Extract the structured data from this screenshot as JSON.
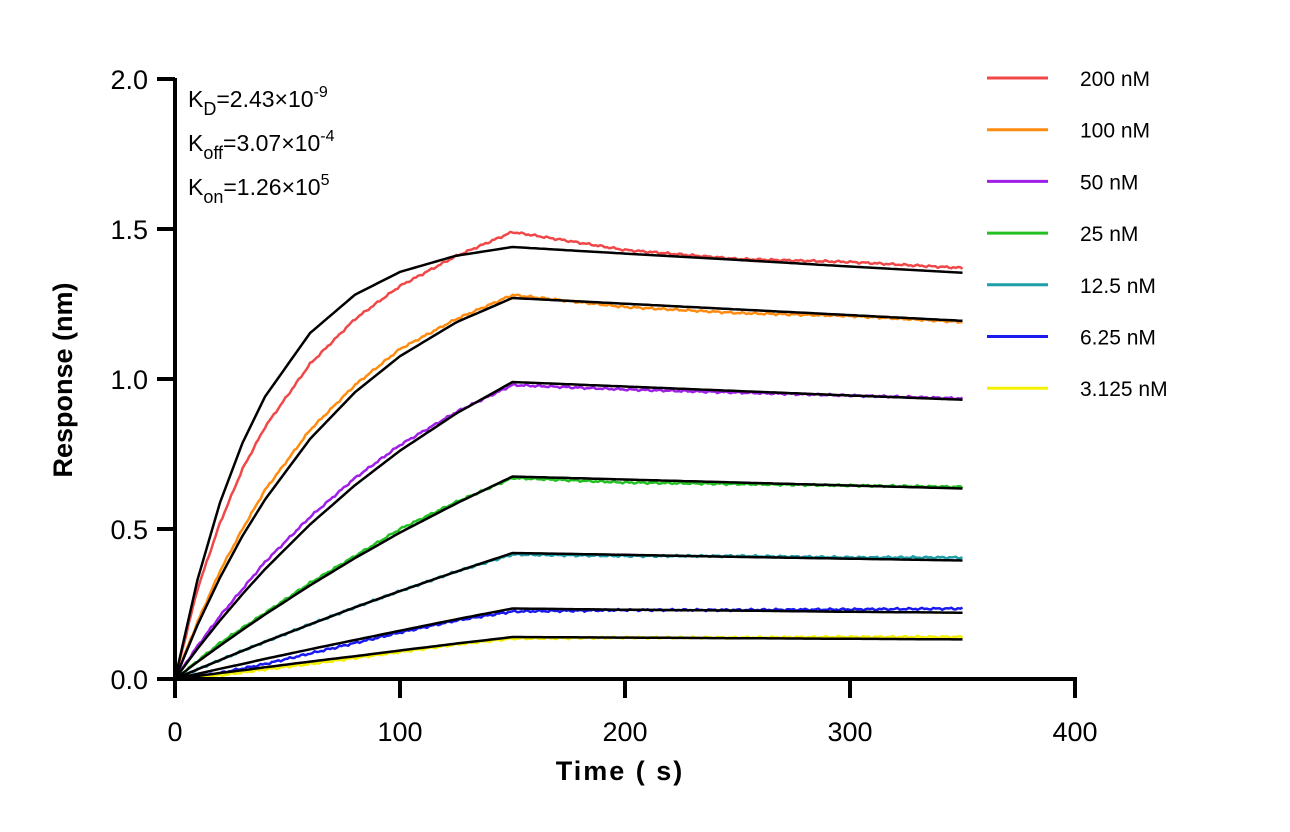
{
  "chart_data": {
    "type": "line",
    "xlabel": "Time ( s)",
    "ylabel": "Response (nm)",
    "xlim": [
      0,
      400
    ],
    "ylim": [
      0,
      2.0
    ],
    "xticks": [
      "0",
      "100",
      "200",
      "300",
      "400"
    ],
    "yticks": [
      "0.0",
      "0.5",
      "1.0",
      "1.5",
      "2.0"
    ],
    "grid": false,
    "legend_position": "top-right",
    "annotations": [
      {
        "sym": "K",
        "sub": "D",
        "val": "=2.43×10",
        "exp": "-9"
      },
      {
        "sym": "K",
        "sub": "off",
        "val": "=3.07×10",
        "exp": "-4"
      },
      {
        "sym": "K",
        "sub": "on",
        "val": "=1.26×10",
        "exp": "5"
      }
    ],
    "x": [
      0,
      10,
      20,
      30,
      40,
      60,
      80,
      100,
      125,
      150,
      200,
      250,
      300,
      350
    ],
    "fit_color": "#000000",
    "series": [
      {
        "name": "200 nM",
        "color": "#F04848",
        "values": [
          0,
          0.3,
          0.52,
          0.7,
          0.84,
          1.05,
          1.2,
          1.31,
          1.41,
          1.49,
          1.43,
          1.4,
          1.39,
          1.37
        ],
        "fit": [
          0,
          0.331,
          0.588,
          0.787,
          0.941,
          1.153,
          1.281,
          1.357,
          1.411,
          1.44,
          1.418,
          1.397,
          1.375,
          1.354
        ]
      },
      {
        "name": "100 nM",
        "color": "#FF8C10",
        "values": [
          0,
          0.19,
          0.36,
          0.5,
          0.63,
          0.83,
          0.98,
          1.1,
          1.2,
          1.28,
          1.24,
          1.22,
          1.21,
          1.19
        ],
        "fit": [
          0,
          0.18,
          0.338,
          0.477,
          0.598,
          0.8,
          0.956,
          1.076,
          1.189,
          1.27,
          1.251,
          1.232,
          1.213,
          1.194
        ]
      },
      {
        "name": "50 nM",
        "color": "#A020E8",
        "values": [
          0,
          0.11,
          0.21,
          0.3,
          0.39,
          0.54,
          0.67,
          0.78,
          0.89,
          0.98,
          0.965,
          0.955,
          0.945,
          0.935
        ],
        "fit": [
          0,
          0.101,
          0.195,
          0.283,
          0.366,
          0.515,
          0.646,
          0.761,
          0.885,
          0.99,
          0.975,
          0.96,
          0.945,
          0.931
        ]
      },
      {
        "name": "25 nM",
        "color": "#22C022",
        "values": [
          0,
          0.06,
          0.12,
          0.17,
          0.22,
          0.32,
          0.41,
          0.5,
          0.59,
          0.67,
          0.655,
          0.65,
          0.645,
          0.64
        ],
        "fit": [
          0,
          0.057,
          0.111,
          0.164,
          0.215,
          0.312,
          0.403,
          0.488,
          0.585,
          0.675,
          0.665,
          0.655,
          0.645,
          0.635
        ]
      },
      {
        "name": "12.5 nM",
        "color": "#1E9EA8",
        "values": [
          0,
          0.032,
          0.063,
          0.094,
          0.124,
          0.182,
          0.239,
          0.293,
          0.358,
          0.415,
          0.41,
          0.41,
          0.405,
          0.405
        ],
        "fit": [
          0,
          0.032,
          0.063,
          0.094,
          0.124,
          0.182,
          0.239,
          0.293,
          0.358,
          0.42,
          0.414,
          0.407,
          0.401,
          0.395
        ]
      },
      {
        "name": "6.25 nM",
        "color": "#1A1AF0",
        "values": [
          0,
          0.008,
          0.02,
          0.035,
          0.05,
          0.085,
          0.12,
          0.155,
          0.195,
          0.225,
          0.23,
          0.23,
          0.232,
          0.235
        ],
        "fit": [
          0,
          0.017,
          0.034,
          0.05,
          0.067,
          0.099,
          0.13,
          0.161,
          0.199,
          0.235,
          0.231,
          0.228,
          0.224,
          0.221
        ]
      },
      {
        "name": "3.125 nM",
        "color": "#F5F000",
        "values": [
          0,
          0.005,
          0.012,
          0.022,
          0.032,
          0.05,
          0.07,
          0.09,
          0.115,
          0.135,
          0.138,
          0.138,
          0.14,
          0.14
        ],
        "fit": [
          0,
          0.01,
          0.02,
          0.029,
          0.039,
          0.058,
          0.076,
          0.095,
          0.118,
          0.14,
          0.138,
          0.136,
          0.134,
          0.132
        ]
      }
    ]
  }
}
